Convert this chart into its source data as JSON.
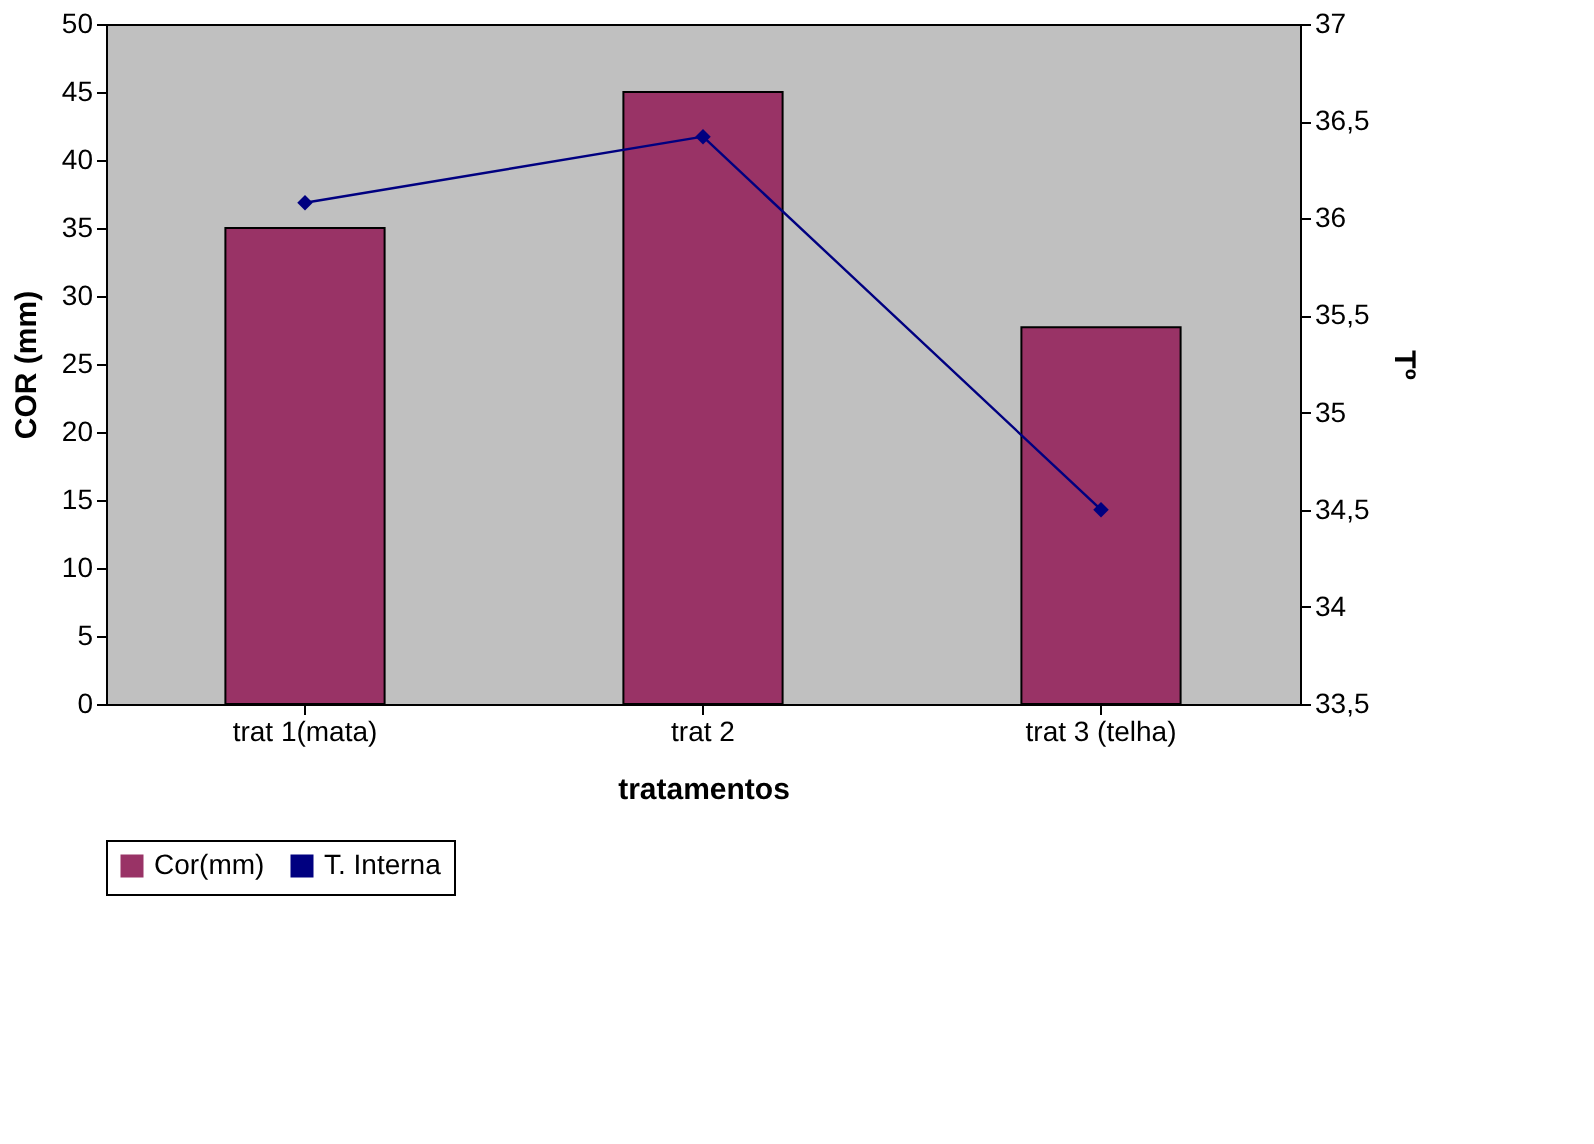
{
  "chart_data": {
    "type": "bar",
    "categories": [
      "trat 1(mata)",
      "trat 2",
      "trat 3 (telha)"
    ],
    "xlabel": "tratamentos",
    "ylabel": "COR (mm)",
    "y2label": "Tº",
    "ylim": [
      0,
      50
    ],
    "yticks": [
      0,
      5,
      10,
      15,
      20,
      25,
      30,
      35,
      40,
      45,
      50
    ],
    "y2lim": [
      33.5,
      37
    ],
    "y2ticks": [
      {
        "value": 33.5,
        "label": "33,5"
      },
      {
        "value": 34,
        "label": "34"
      },
      {
        "value": 34.5,
        "label": "34,5"
      },
      {
        "value": 35,
        "label": "35"
      },
      {
        "value": 35.5,
        "label": "35,5"
      },
      {
        "value": 36,
        "label": "36"
      },
      {
        "value": 36.5,
        "label": "36,5"
      },
      {
        "value": 37,
        "label": "37"
      }
    ],
    "series": [
      {
        "name": "Cor(mm)",
        "color": "#993366",
        "values": [
          35,
          45,
          27.7
        ]
      },
      {
        "name": "T. Interna",
        "type": "line",
        "axis": "y2",
        "color": "#000080",
        "marker": "diamond",
        "values": [
          36.08,
          36.42,
          34.5
        ]
      }
    ],
    "grid": false,
    "legend": "bottom"
  }
}
